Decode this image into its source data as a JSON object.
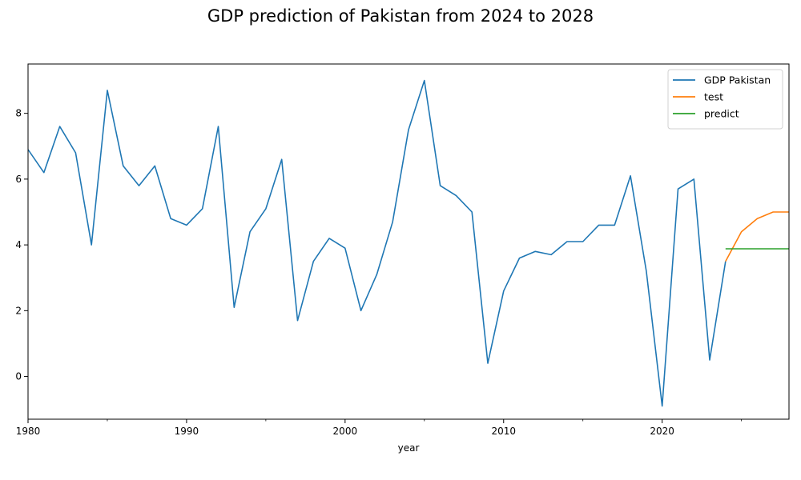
{
  "chart_data": {
    "type": "line",
    "title": "GDP prediction of Pakistan from 2024 to 2028",
    "xlabel": "year",
    "ylabel": "",
    "xlim": [
      1980,
      2028
    ],
    "ylim": [
      -1.3,
      9.5
    ],
    "x_ticks": [
      1980,
      1990,
      2000,
      2010,
      2020
    ],
    "y_ticks": [
      0,
      2,
      4,
      6,
      8
    ],
    "grid": false,
    "legend_position": "top-right",
    "series": [
      {
        "name": "GDP Pakistan",
        "color": "#1f77b4",
        "x": [
          1980,
          1981,
          1982,
          1983,
          1984,
          1985,
          1986,
          1987,
          1988,
          1989,
          1990,
          1991,
          1992,
          1993,
          1994,
          1995,
          1996,
          1997,
          1998,
          1999,
          2000,
          2001,
          2002,
          2003,
          2004,
          2005,
          2006,
          2007,
          2008,
          2009,
          2010,
          2011,
          2012,
          2013,
          2014,
          2015,
          2016,
          2017,
          2018,
          2019,
          2020,
          2021,
          2022,
          2023,
          2024
        ],
        "values": [
          6.9,
          6.2,
          7.6,
          6.8,
          4.0,
          8.7,
          6.4,
          5.8,
          6.4,
          4.8,
          4.6,
          5.1,
          7.6,
          2.1,
          4.4,
          5.1,
          6.6,
          1.7,
          3.5,
          4.2,
          3.9,
          2.0,
          3.1,
          4.7,
          7.5,
          9.0,
          5.8,
          5.5,
          5.0,
          0.4,
          2.6,
          3.6,
          3.8,
          3.7,
          4.1,
          4.1,
          4.6,
          4.6,
          6.1,
          3.2,
          -0.9,
          5.7,
          6.0,
          0.5,
          3.5
        ]
      },
      {
        "name": "test",
        "color": "#ff7f0e",
        "x": [
          2024,
          2025,
          2026,
          2027,
          2028
        ],
        "values": [
          3.5,
          4.4,
          4.8,
          5.0,
          5.0
        ]
      },
      {
        "name": "predict",
        "color": "#2ca02c",
        "x": [
          2024,
          2025,
          2026,
          2027,
          2028
        ],
        "values": [
          3.88,
          3.88,
          3.88,
          3.88,
          3.88
        ]
      }
    ]
  }
}
